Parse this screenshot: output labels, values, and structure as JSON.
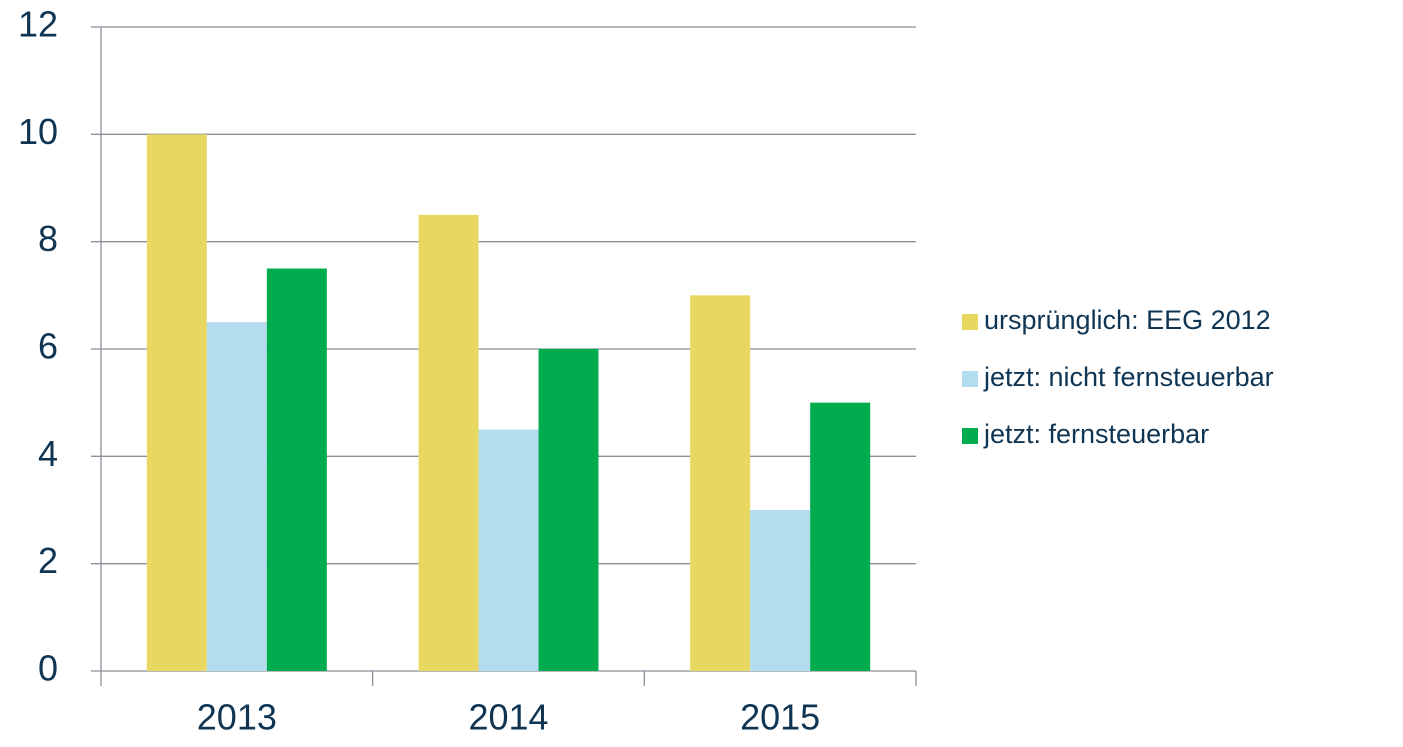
{
  "chart_data": {
    "type": "bar",
    "categories": [
      "2013",
      "2014",
      "2015"
    ],
    "series": [
      {
        "name": "ursprünglich: EEG 2012",
        "color": "#e8d862",
        "values": [
          10,
          8.5,
          7
        ]
      },
      {
        "name": "jetzt: nicht fernsteuerbar",
        "color": "#b3ddee",
        "values": [
          6.5,
          4.5,
          3
        ]
      },
      {
        "name": "jetzt: fernsteuerbar",
        "color": "#00ac4e",
        "values": [
          7.5,
          6,
          5
        ]
      }
    ],
    "ylim": [
      0,
      12
    ],
    "yticks": [
      0,
      2,
      4,
      6,
      8,
      10,
      12
    ],
    "grid": true,
    "legend": "right"
  }
}
